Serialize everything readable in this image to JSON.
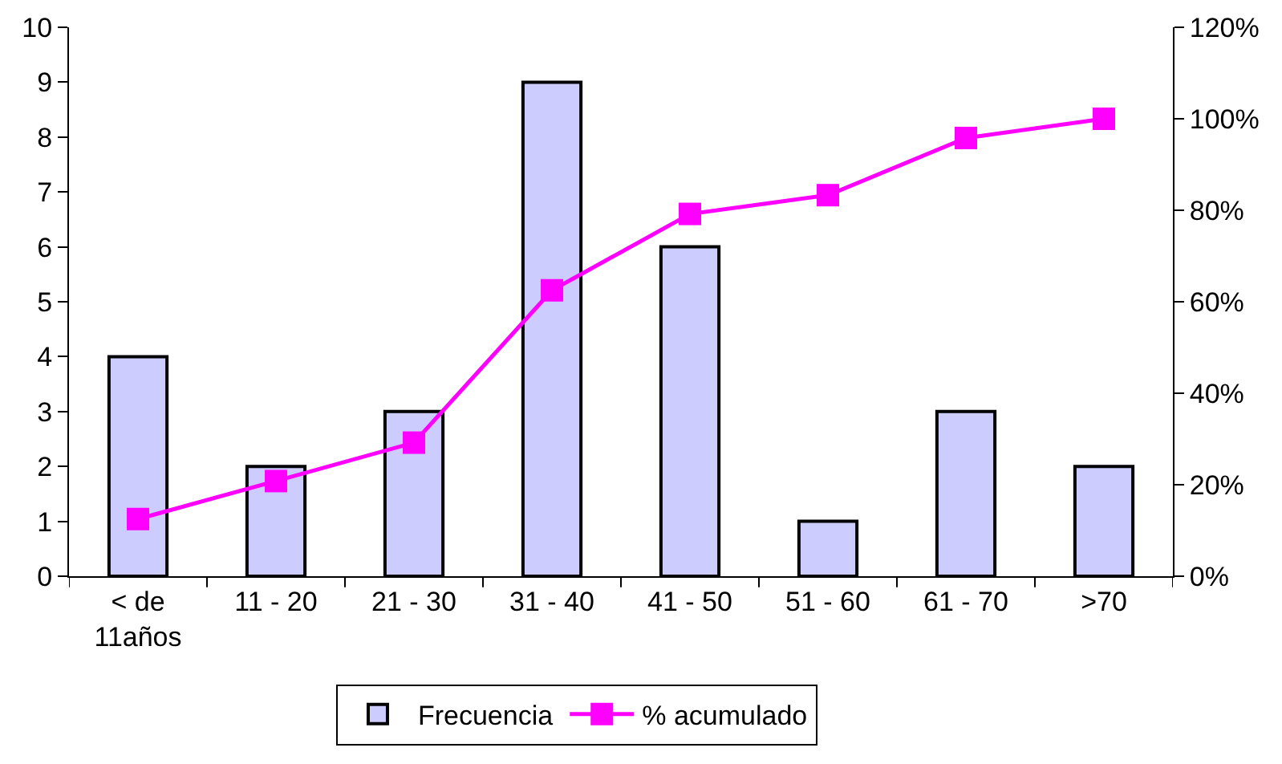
{
  "chart_data": {
    "type": "bar",
    "categories": [
      "< de 11años",
      "11 - 20",
      "21 - 30",
      "31 - 40",
      "41 - 50",
      "51 - 60",
      "61 - 70",
      ">70"
    ],
    "series": [
      {
        "name": "Frecuencia",
        "color": "#ccccff",
        "values": [
          4,
          2,
          3,
          9,
          6,
          1,
          3,
          2
        ]
      },
      {
        "name": "% acumulado",
        "type": "line",
        "axis": "y2",
        "color": "#ff00ff",
        "values": [
          12.5,
          20.8,
          29.2,
          62.5,
          79.2,
          83.3,
          95.8,
          100
        ]
      }
    ],
    "ylim": [
      0,
      10
    ],
    "yticks": [
      0,
      1,
      2,
      3,
      4,
      5,
      6,
      7,
      8,
      9,
      10
    ],
    "y2lim": [
      0,
      120
    ],
    "y2ticks": [
      {
        "value": 0,
        "label": "0%"
      },
      {
        "value": 20,
        "label": "20%"
      },
      {
        "value": 40,
        "label": "40%"
      },
      {
        "value": 60,
        "label": "60%"
      },
      {
        "value": 80,
        "label": "80%"
      },
      {
        "value": 100,
        "label": "100%"
      },
      {
        "value": 120,
        "label": "120%"
      }
    ],
    "legend": "bottom",
    "grid": false,
    "marker": "square"
  }
}
